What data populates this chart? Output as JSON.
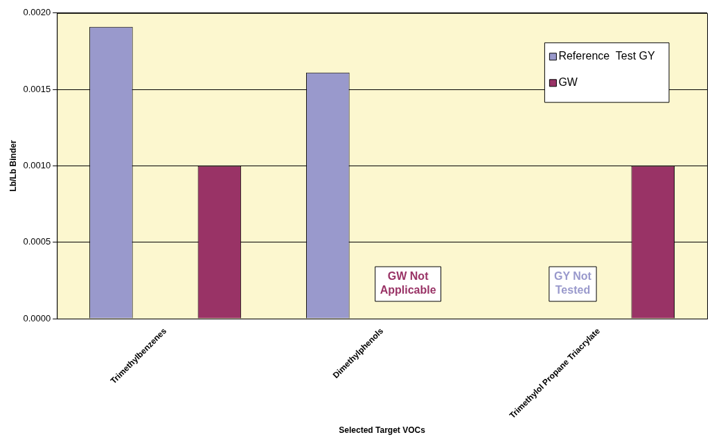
{
  "chart_data": {
    "type": "bar",
    "xlabel": "Selected Target VOCs",
    "ylabel": "Lb/Lb Binder",
    "categories": [
      "Trimethylbenzenes",
      "Dimethylphenols",
      "Trimethylol Propane Triacrylate"
    ],
    "series": [
      {
        "name": "Reference  Test GY",
        "color": "#9999cc",
        "values": [
          0.00191,
          0.00161,
          null
        ]
      },
      {
        "name": "GW",
        "color": "#993366",
        "values": [
          0.001,
          null,
          0.001
        ]
      }
    ],
    "ylim": [
      0,
      0.002
    ],
    "yticks": [
      {
        "value": 0,
        "label": "0.0000"
      },
      {
        "value": 0.0005,
        "label": "0.0005"
      },
      {
        "value": 0.001,
        "label": "0.0010"
      },
      {
        "value": 0.0015,
        "label": "0.0015"
      },
      {
        "value": 0.002,
        "label": "0.0020"
      }
    ],
    "grid": "y",
    "legend": "top right",
    "annotations": [
      "GW Not Applicable",
      "GY Not Tested"
    ]
  }
}
